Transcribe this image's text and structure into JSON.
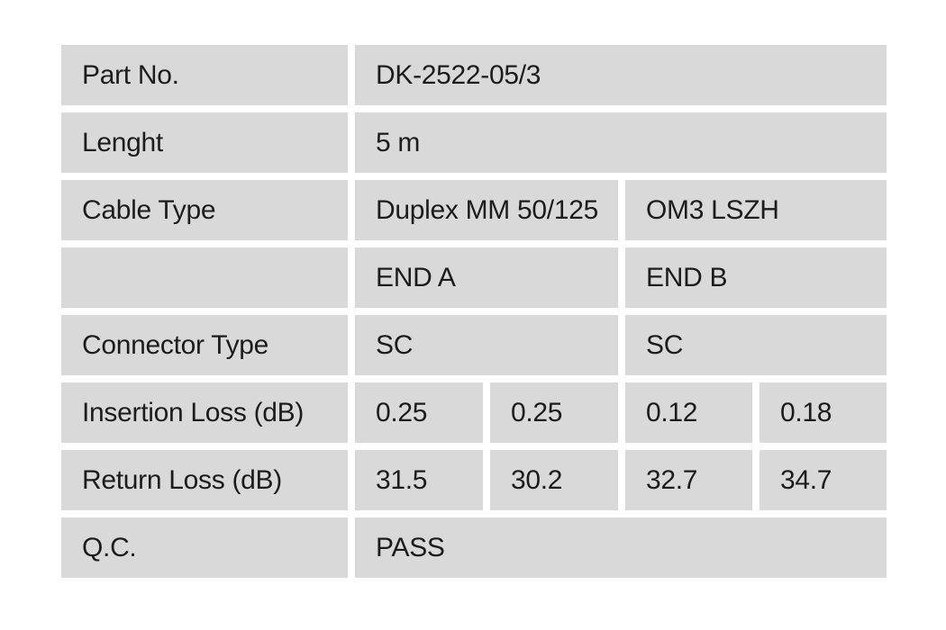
{
  "document": {
    "kind": "cable-specification-table",
    "background_color": "#ffffff",
    "cell_background_color": "#d9d9d9",
    "text_color": "#1c1c1c"
  },
  "table": {
    "columns": 5,
    "rows": [
      {
        "cells": [
          {
            "name": "part-no-label",
            "text": "Part No.",
            "span": 1
          },
          {
            "name": "part-no-value",
            "text": "DK-2522-05/3",
            "span": 4
          }
        ]
      },
      {
        "cells": [
          {
            "name": "length-label",
            "text": "Lenght",
            "span": 1
          },
          {
            "name": "length-value",
            "text": "5 m",
            "span": 4
          }
        ]
      },
      {
        "cells": [
          {
            "name": "cable-type-label",
            "text": "Cable Type",
            "span": 1
          },
          {
            "name": "cable-type-value-1",
            "text": "Duplex MM 50/125",
            "span": 2
          },
          {
            "name": "cable-type-value-2",
            "text": "OM3 LSZH",
            "span": 2
          }
        ]
      },
      {
        "cells": [
          {
            "name": "end-header-spacer",
            "text": "",
            "span": 1
          },
          {
            "name": "end-a-header",
            "text": "END A",
            "span": 2
          },
          {
            "name": "end-b-header",
            "text": "END B",
            "span": 2
          }
        ]
      },
      {
        "cells": [
          {
            "name": "connector-type-label",
            "text": "Connector Type",
            "span": 1
          },
          {
            "name": "connector-type-end-a",
            "text": "SC",
            "span": 2
          },
          {
            "name": "connector-type-end-b",
            "text": "SC",
            "span": 2
          }
        ]
      },
      {
        "cells": [
          {
            "name": "insertion-loss-label",
            "text": "Insertion Loss (dB)",
            "span": 1
          },
          {
            "name": "insertion-loss-end-a-1",
            "text": "0.25",
            "span": 1
          },
          {
            "name": "insertion-loss-end-a-2",
            "text": "0.25",
            "span": 1
          },
          {
            "name": "insertion-loss-end-b-1",
            "text": "0.12",
            "span": 1
          },
          {
            "name": "insertion-loss-end-b-2",
            "text": "0.18",
            "span": 1
          }
        ]
      },
      {
        "cells": [
          {
            "name": "return-loss-label",
            "text": "Return Loss (dB)",
            "span": 1
          },
          {
            "name": "return-loss-end-a-1",
            "text": "31.5",
            "span": 1
          },
          {
            "name": "return-loss-end-a-2",
            "text": "30.2",
            "span": 1
          },
          {
            "name": "return-loss-end-b-1",
            "text": "32.7",
            "span": 1
          },
          {
            "name": "return-loss-end-b-2",
            "text": "34.7",
            "span": 1
          }
        ]
      },
      {
        "cells": [
          {
            "name": "qc-label",
            "text": "Q.C.",
            "span": 1
          },
          {
            "name": "qc-value",
            "text": "PASS",
            "span": 4
          }
        ]
      }
    ]
  }
}
